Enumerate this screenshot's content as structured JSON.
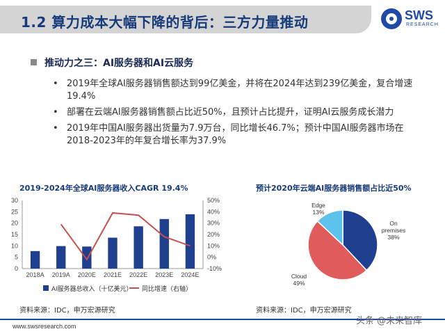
{
  "header": {
    "title": "1.2 算力成本大幅下降的背后：三方力量推动",
    "logo_text": "SWS",
    "logo_sub": "RESEARCH"
  },
  "section": {
    "title": "推动力之三：AI服务器和AI云服务"
  },
  "bullets": [
    {
      "dot": "•",
      "text": "2019年全球AI服务器销售额达到99亿美金，并将在2024年达到239亿美金，复合增速19.4%"
    },
    {
      "dot": "•",
      "text": "部署在云端AI服务器销售额占比近50%，且预计占比提升，证明AI云服务成长潜力"
    },
    {
      "dot": "•",
      "text": "2019年中国AI服务器出货量为7.9万台，同比增长46.7%；预计中国AI服务器市场在2018-2023年的年复合增长率为37.9%"
    }
  ],
  "chart_data": [
    {
      "type": "bar",
      "title": "2019-2024年全球AI服务器收入CAGR 19.4%",
      "categories": [
        "2018A",
        "2019A",
        "2020E",
        "2021E",
        "2022E",
        "2023E",
        "2024E"
      ],
      "series": [
        {
          "name": "AI服务器总收入（十亿美元）",
          "type": "bar",
          "axis": "left",
          "color": "#1f3f8f",
          "values": [
            7.7,
            9.9,
            9.7,
            13.6,
            18.6,
            21.8,
            23.9
          ]
        },
        {
          "name": "同比增速（右轴）",
          "type": "line",
          "axis": "right",
          "color": "#c85050",
          "values": [
            null,
            29,
            -2,
            39,
            37,
            18,
            10
          ]
        }
      ],
      "yticks_left": [
        0,
        5,
        10,
        15,
        20,
        25,
        30
      ],
      "yticks_right": [
        "-10%",
        "0%",
        "10%",
        "20%",
        "30%",
        "40%",
        "50%"
      ],
      "ylim_left": [
        0,
        30
      ],
      "ylim_right": [
        -10,
        50
      ],
      "legend": "bottom",
      "source": "资料来源：IDC，申万宏源研究"
    },
    {
      "type": "pie",
      "title": "预计2020年云端AI服务器销售额占比近50%",
      "slices": [
        {
          "label": "On premises",
          "pct": "38%",
          "value": 38,
          "color": "#1f3f8f"
        },
        {
          "label": "Cloud",
          "pct": "49%",
          "value": 49,
          "color": "#e05c5c"
        },
        {
          "label": "Edge",
          "pct": "13%",
          "value": 13,
          "color": "#5ec3ec"
        }
      ],
      "source": "资料来源：IDC，申万宏源研究"
    }
  ],
  "footer": {
    "url": "www.swsresearch.com"
  },
  "watermark": "头条 @未来智库"
}
